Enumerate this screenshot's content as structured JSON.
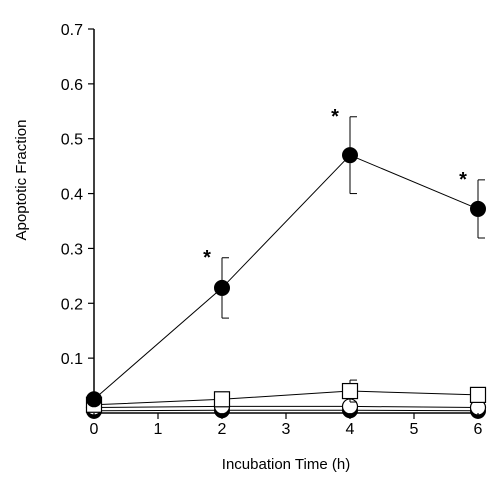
{
  "chart_data": {
    "type": "line",
    "title": "",
    "xlabel": "Incubation Time (h)",
    "ylabel": "Apoptotic Fraction",
    "xlim": [
      0,
      6
    ],
    "ylim": [
      0,
      0.7
    ],
    "x_ticks": [
      0,
      1,
      2,
      3,
      4,
      5,
      6
    ],
    "x_tick_labels": [
      "0",
      "1",
      "2",
      "3",
      "4",
      "5",
      "6"
    ],
    "y_ticks": [
      0.1,
      0.2,
      0.3,
      0.4,
      0.5,
      0.6,
      0.7
    ],
    "y_tick_labels": [
      "0.1",
      "0.2",
      "0.3",
      "0.4",
      "0.5",
      "0.6",
      "0.7"
    ],
    "grid": false,
    "legend": "none",
    "series": [
      {
        "marker": "filled-circle",
        "x": [
          0,
          2,
          4,
          6
        ],
        "y": [
          0.025,
          0.228,
          0.47,
          0.372
        ],
        "error": [
          0,
          0.055,
          0.07,
          0.053
        ],
        "annotations": [
          "",
          "*",
          "*",
          "*"
        ]
      },
      {
        "marker": "open-square",
        "x": [
          0,
          2,
          4,
          6
        ],
        "y": [
          0.015,
          0.025,
          0.04,
          0.033
        ],
        "error": [
          0,
          0.005,
          0.02,
          0.007
        ],
        "annotations": [
          "",
          "",
          "",
          ""
        ]
      },
      {
        "marker": "open-circle",
        "x": [
          0,
          2,
          4,
          6
        ],
        "y": [
          0.01,
          0.012,
          0.012,
          0.01
        ],
        "error": [
          0,
          0,
          0,
          0
        ],
        "annotations": [
          "",
          "",
          "",
          ""
        ]
      },
      {
        "marker": "filled-circle",
        "x": [
          0,
          2,
          4,
          6
        ],
        "y": [
          0.004,
          0.005,
          0.005,
          0.004
        ],
        "error": [
          0,
          0,
          0,
          0
        ],
        "annotations": [
          "",
          "",
          "",
          ""
        ]
      }
    ]
  }
}
